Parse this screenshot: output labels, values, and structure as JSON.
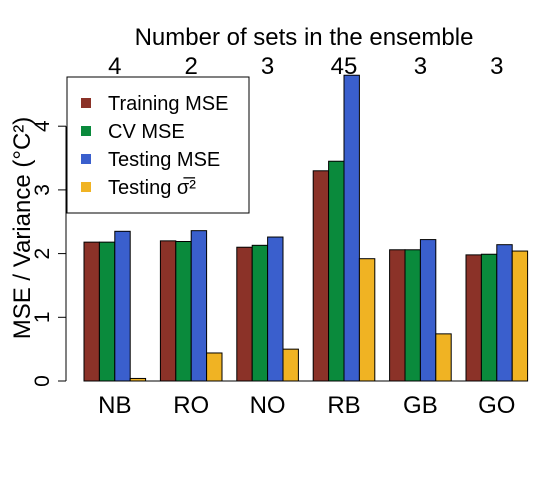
{
  "chart_data": {
    "type": "bar",
    "top_axis_title": "Number of sets in the ensemble",
    "top_axis_labels": [
      "4",
      "2",
      "3",
      "45",
      "3",
      "3"
    ],
    "categories": [
      "NB",
      "RO",
      "NO",
      "RB",
      "GB",
      "GO"
    ],
    "ylabel": "MSE / Variance (°C²)",
    "ylim": [
      0,
      4.85
    ],
    "yticks": [
      0,
      1,
      2,
      3,
      4
    ],
    "grid": false,
    "legend_position": "top-left",
    "series": [
      {
        "name": "Training MSE",
        "color": "#8b3228",
        "values": [
          2.18,
          2.2,
          2.1,
          3.3,
          2.06,
          1.98
        ]
      },
      {
        "name": "CV MSE",
        "color": "#0a8a3c",
        "values": [
          2.18,
          2.19,
          2.13,
          3.45,
          2.06,
          1.99
        ]
      },
      {
        "name": "Testing MSE",
        "color": "#3a5fcd",
        "values": [
          2.35,
          2.36,
          2.26,
          4.8,
          2.22,
          2.14
        ]
      },
      {
        "name": "Testing σ̅²",
        "color": "#f0b323",
        "values": [
          0.04,
          0.44,
          0.5,
          1.92,
          0.74,
          2.04
        ]
      }
    ]
  }
}
